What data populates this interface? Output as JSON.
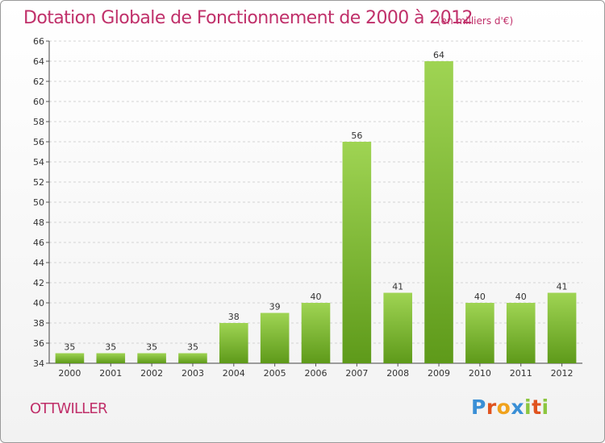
{
  "header": {
    "title": "Dotation Globale de Fonctionnement de 2000 à 2012",
    "unit": "(en milliers d'€)"
  },
  "footer": {
    "place": "OTTWILLER",
    "logo": "Proxiti"
  },
  "colors": {
    "title": "#c0306a",
    "bar_light": "#9fd453",
    "bar_dark": "#5e9a1a",
    "grid": "#d4d4d4"
  },
  "chart_data": {
    "type": "bar",
    "title": "Dotation Globale de Fonctionnement de 2000 à 2012",
    "subtitle": "(en milliers d'€)",
    "categories": [
      "2000",
      "2001",
      "2002",
      "2003",
      "2004",
      "2005",
      "2006",
      "2007",
      "2008",
      "2009",
      "2010",
      "2011",
      "2012"
    ],
    "values": [
      35,
      35,
      35,
      35,
      38,
      39,
      40,
      56,
      41,
      64,
      40,
      40,
      41
    ],
    "ylim": [
      34,
      66
    ],
    "ytick_step": 2,
    "grid": true,
    "data_labels": true
  }
}
